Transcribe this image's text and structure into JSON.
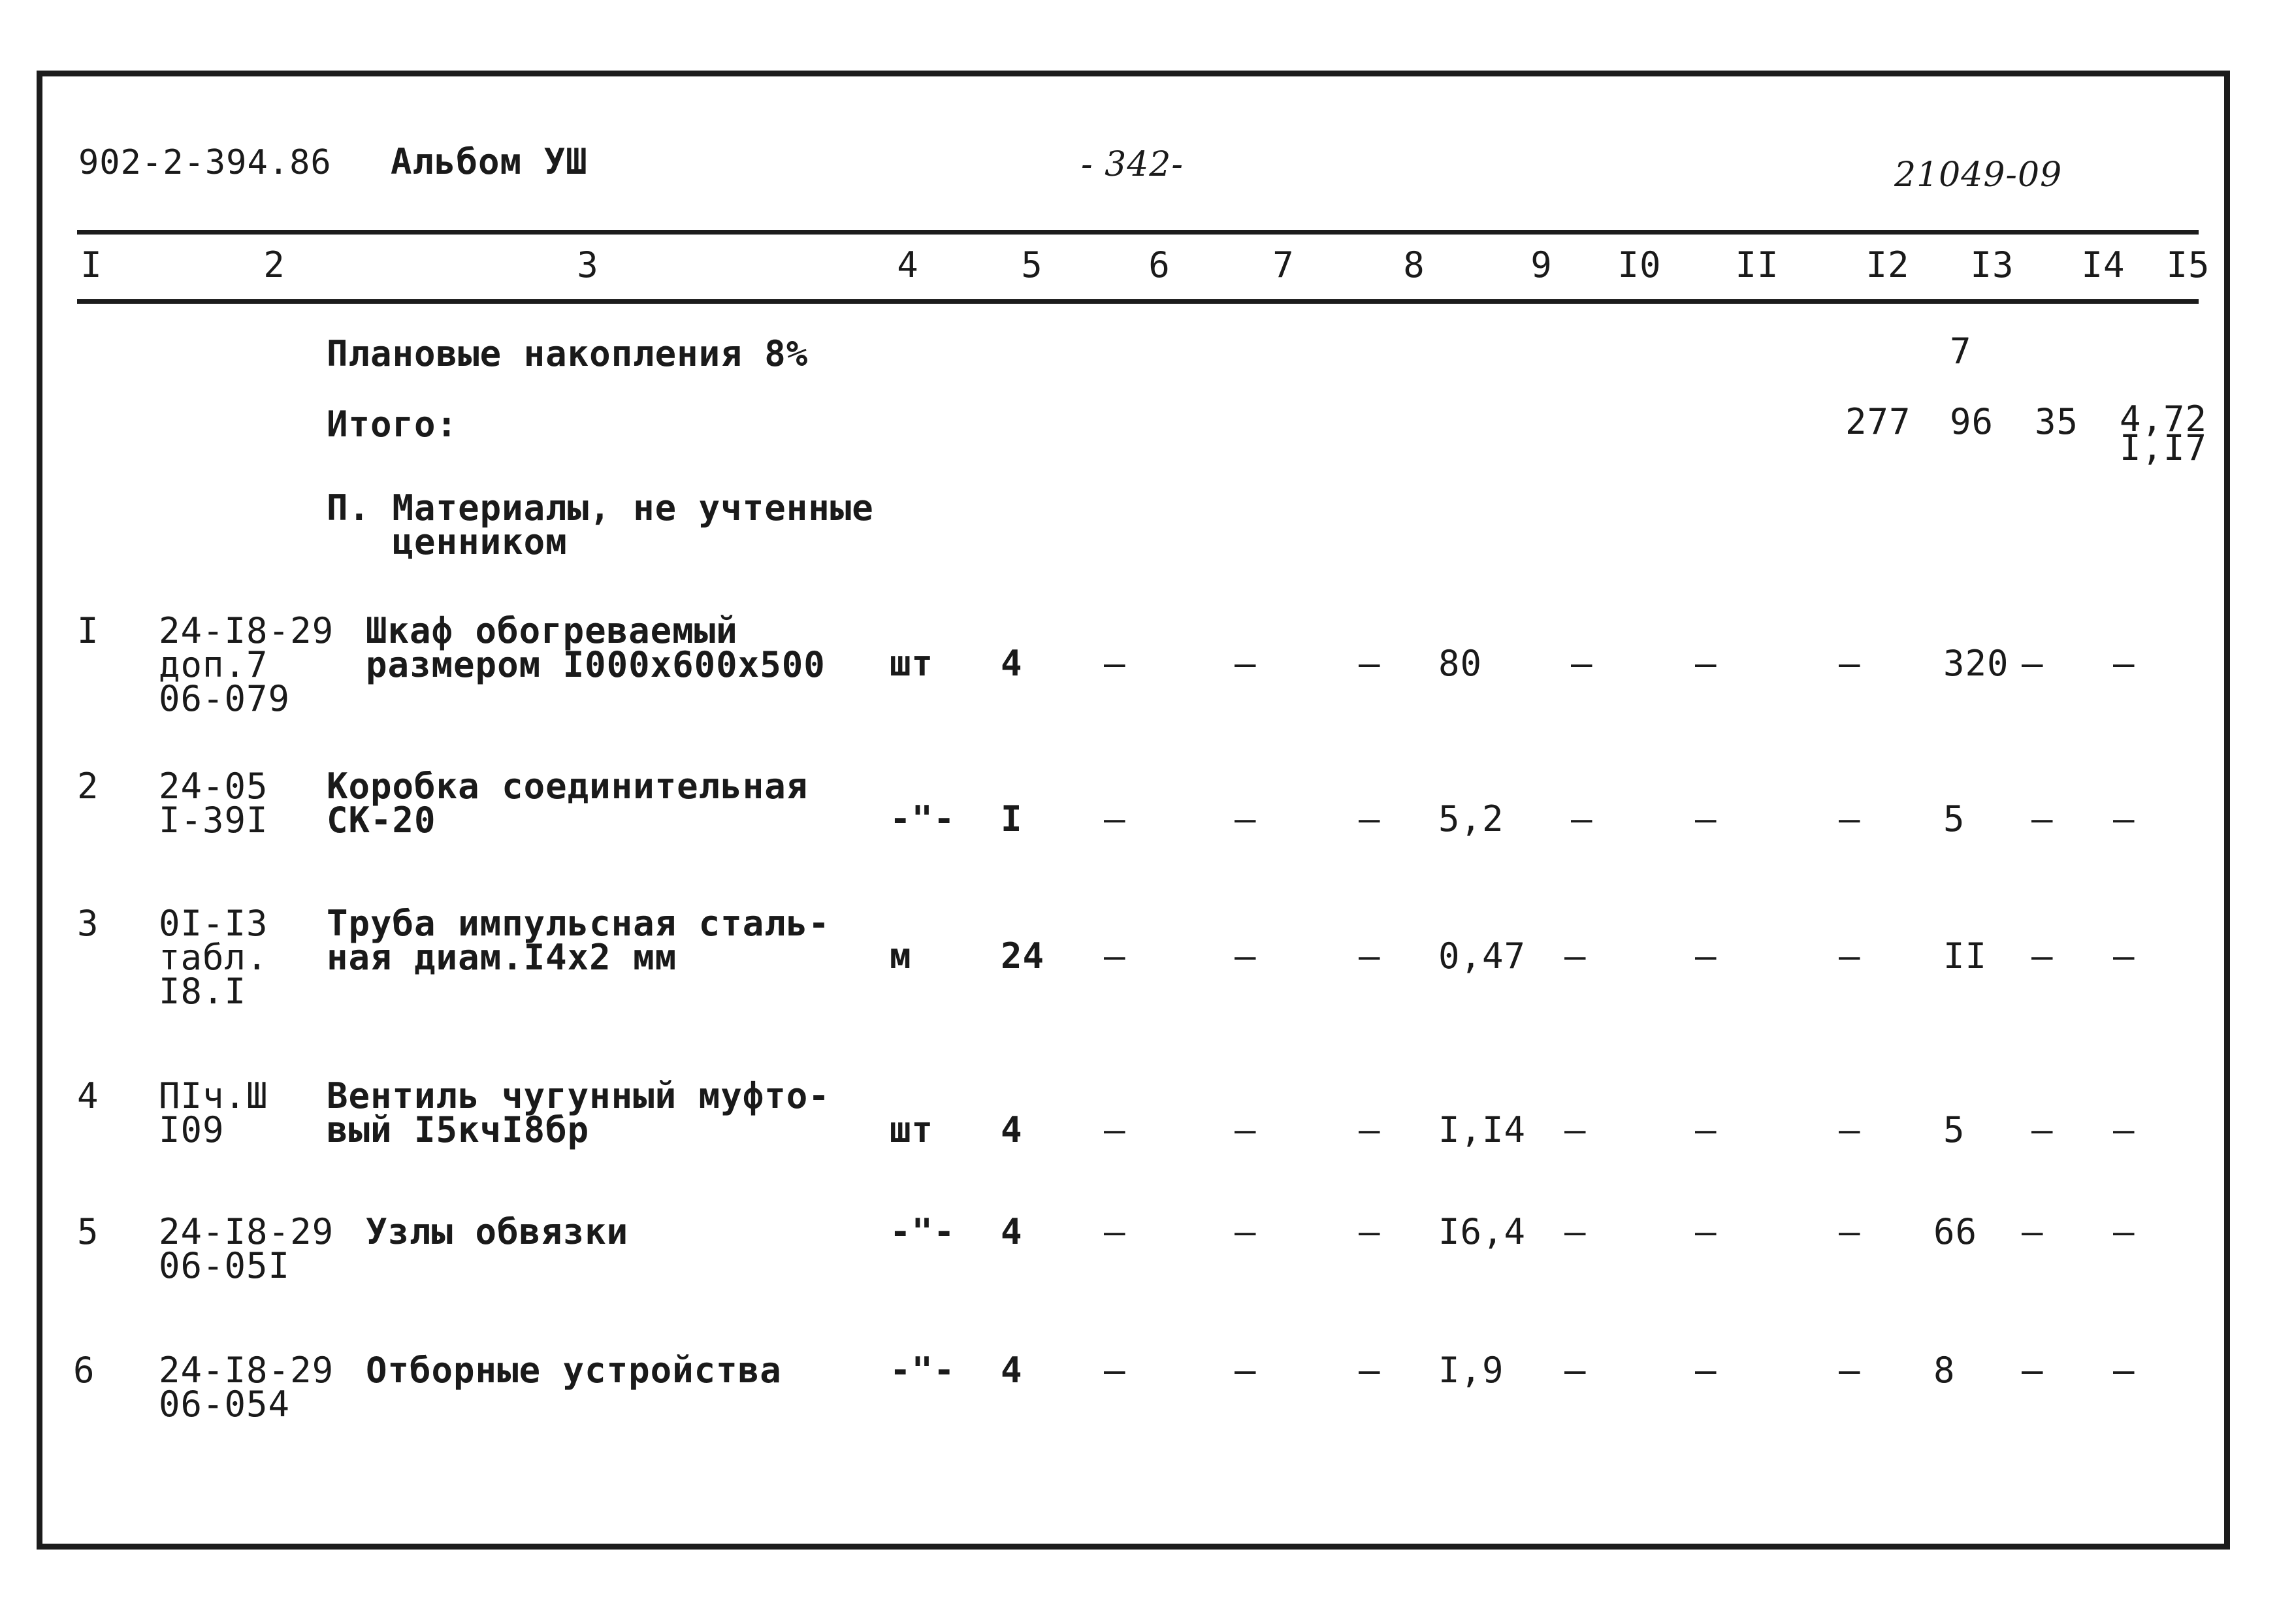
{
  "header": {
    "doc_code": "902-2-394.86",
    "album": "Альбом УШ",
    "page": "- 342-",
    "ref": "21049-09"
  },
  "columns": [
    "I",
    "2",
    "3",
    "4",
    "5",
    "6",
    "7",
    "8",
    "9",
    "I0",
    "II",
    "I2",
    "I3",
    "I4",
    "I5"
  ],
  "summary": {
    "planned_label": "Плановые накопления 8%",
    "planned_c13": "7",
    "total_label": "Итого:",
    "total_c12": "277",
    "total_c13": "96",
    "total_c14": "35",
    "total_c15": "4,72\nI,I7",
    "section_title": "П. Материалы, не учтенные\n   ценником"
  },
  "rows": [
    {
      "n": "I",
      "code": "24-I8-29\nдоп.7\n06-079",
      "name": "Шкаф обогреваемый\nразмером I000x600x500",
      "unit": "шт",
      "qty": "4",
      "c6": "–",
      "c7": "–",
      "c8": "–",
      "price": "80",
      "c10": "–",
      "c11": "–",
      "c12": "–",
      "c13": "320",
      "c14": "–",
      "c15": "–"
    },
    {
      "n": "2",
      "code": "24-05\nI-39I",
      "name": "Коробка соединительная\nСК-20",
      "unit": "-\"-",
      "qty": "I",
      "c6": "–",
      "c7": "–",
      "c8": "–",
      "price": "5,2",
      "c10": "–",
      "c11": "–",
      "c12": "–",
      "c13": "5",
      "c14": "–",
      "c15": "–"
    },
    {
      "n": "3",
      "code": "0I-I3\nтабл.\nI8.I",
      "name": "Труба импульсная сталь-\nная диам.I4x2 мм",
      "unit": "м",
      "qty": "24",
      "c6": "–",
      "c7": "–",
      "c8": "–",
      "price": "0,47",
      "c10": "–",
      "c11": "–",
      "c12": "–",
      "c13": "II",
      "c14": "–",
      "c15": "–"
    },
    {
      "n": "4",
      "code": "ПIч.Ш\nI09",
      "name": "Вентиль чугунный муфто-\nвый I5кчI8бр",
      "unit": "шт",
      "qty": "4",
      "c6": "–",
      "c7": "–",
      "c8": "–",
      "price": "I,I4",
      "c10": "–",
      "c11": "–",
      "c12": "–",
      "c13": "5",
      "c14": "–",
      "c15": "–"
    },
    {
      "n": "5",
      "code": "24-I8-29\n06-05I",
      "name": "Узлы обвязки",
      "unit": "-\"-",
      "qty": "4",
      "c6": "–",
      "c7": "–",
      "c8": "–",
      "price": "I6,4",
      "c10": "–",
      "c11": "–",
      "c12": "–",
      "c13": "66",
      "c14": "–",
      "c15": "–"
    },
    {
      "n": "6",
      "code": "24-I8-29\n06-054",
      "name": "Отборные устройства",
      "unit": "-\"-",
      "qty": "4",
      "c6": "–",
      "c7": "–",
      "c8": "–",
      "price": "I,9",
      "c10": "–",
      "c11": "–",
      "c12": "–",
      "c13": "8",
      "c14": "–",
      "c15": "–"
    }
  ]
}
